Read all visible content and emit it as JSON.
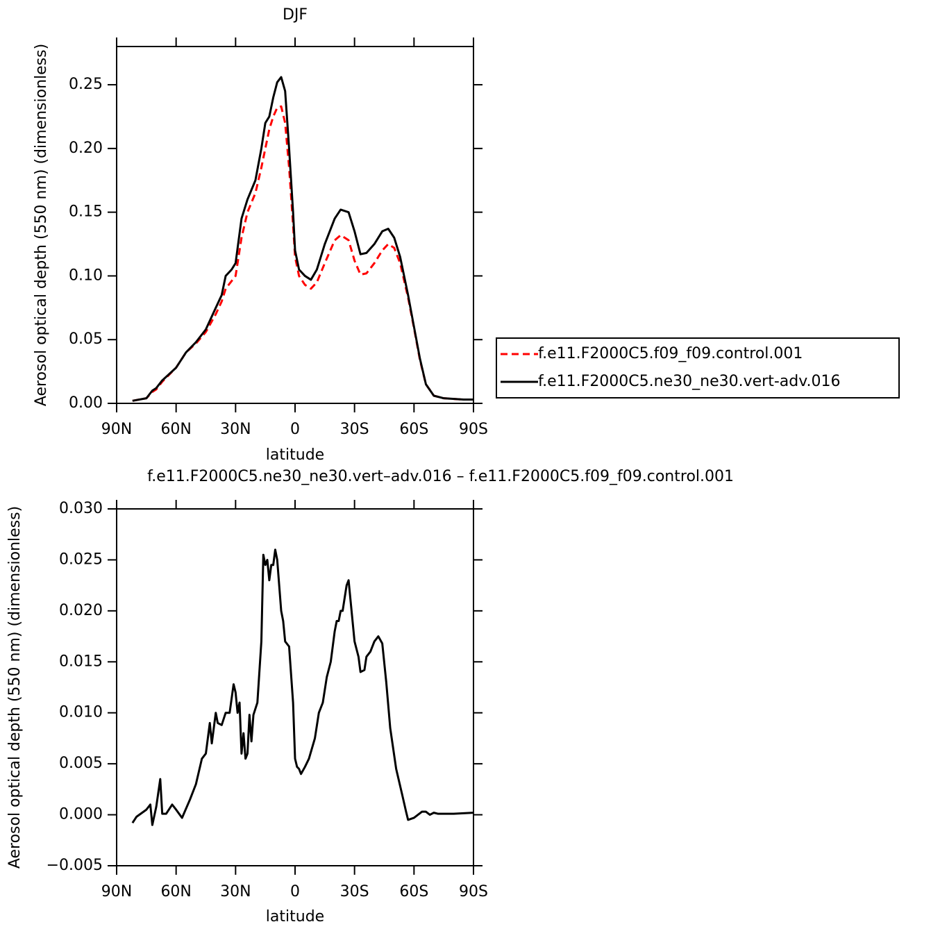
{
  "chart_data": [
    {
      "type": "line",
      "title": "DJF",
      "xlabel": "latitude",
      "ylabel": "Aerosol optical depth (550 nm) (dimensionless)",
      "x": [
        82,
        75,
        72,
        70,
        67,
        60,
        55,
        50,
        45,
        40,
        37,
        35,
        32,
        30,
        27,
        24,
        20,
        17,
        15,
        13,
        11,
        9,
        7,
        5,
        3,
        1,
        0,
        -2,
        -5,
        -8,
        -11,
        -15,
        -20,
        -23,
        -27,
        -30,
        -33,
        -36,
        -40,
        -44,
        -47,
        -50,
        -53,
        -57,
        -60,
        -63,
        -66,
        -70,
        -75,
        -85,
        -90
      ],
      "series": [
        {
          "name": "f.e11.F2000C5.f09_f09.control.001",
          "color": "#ff0000",
          "dashed": true,
          "values": [
            0.002,
            0.004,
            0.009,
            0.011,
            0.017,
            0.028,
            0.04,
            0.047,
            0.056,
            0.07,
            0.08,
            0.09,
            0.096,
            0.1,
            0.13,
            0.15,
            0.165,
            0.185,
            0.2,
            0.215,
            0.225,
            0.232,
            0.233,
            0.22,
            0.185,
            0.14,
            0.115,
            0.1,
            0.093,
            0.09,
            0.095,
            0.11,
            0.128,
            0.132,
            0.128,
            0.112,
            0.101,
            0.102,
            0.11,
            0.12,
            0.125,
            0.122,
            0.11,
            0.083,
            0.059,
            0.034,
            0.015,
            0.006,
            0.004,
            0.003,
            0.003
          ]
        },
        {
          "name": "f.e11.F2000C5.ne30_ne30.vert-adv.016",
          "color": "#000000",
          "dashed": false,
          "values": [
            0.002,
            0.004,
            0.01,
            0.012,
            0.018,
            0.028,
            0.04,
            0.048,
            0.058,
            0.075,
            0.085,
            0.1,
            0.105,
            0.11,
            0.145,
            0.16,
            0.175,
            0.2,
            0.22,
            0.225,
            0.24,
            0.252,
            0.256,
            0.245,
            0.2,
            0.15,
            0.12,
            0.105,
            0.1,
            0.097,
            0.105,
            0.125,
            0.145,
            0.152,
            0.15,
            0.135,
            0.117,
            0.118,
            0.125,
            0.135,
            0.137,
            0.13,
            0.115,
            0.085,
            0.06,
            0.035,
            0.015,
            0.006,
            0.004,
            0.003,
            0.003
          ]
        }
      ],
      "xlim": [
        90,
        -90
      ],
      "xticks": [
        {
          "value": 90,
          "label": "90N"
        },
        {
          "value": 60,
          "label": "60N"
        },
        {
          "value": 30,
          "label": "30N"
        },
        0,
        {
          "value": -30,
          "label": "30S"
        },
        {
          "value": -60,
          "label": "60S"
        },
        {
          "value": -90,
          "label": "90S"
        }
      ],
      "ylim": [
        0,
        0.28
      ],
      "yticks": [
        {
          "value": 0,
          "label": "0.00"
        },
        0.05,
        {
          "value": 0.1,
          "label": "0.10"
        },
        0.15,
        {
          "value": 0.2,
          "label": "0.20"
        },
        0.25
      ],
      "legend": "outside-right"
    },
    {
      "type": "line",
      "title": "f.e11.F2000C5.ne30_ne30.vert–adv.016 – f.e11.F2000C5.f09_f09.control.001",
      "xlabel": "latitude",
      "ylabel": "Aerosol optical depth (550 nm) (dimensionless)",
      "x": [
        82,
        80,
        75,
        73,
        72,
        70,
        68,
        67,
        65,
        62,
        60,
        57,
        53,
        50,
        47,
        45,
        43,
        42,
        40,
        39,
        37,
        35,
        33,
        31,
        30,
        29,
        28,
        27,
        26,
        25,
        24,
        23,
        22,
        21,
        19,
        17,
        16,
        15,
        14,
        13,
        12,
        11,
        10,
        9,
        7,
        6,
        5,
        3,
        1,
        0,
        -1,
        -2,
        -3,
        -5,
        -7,
        -10,
        -12,
        -14,
        -16,
        -18,
        -20,
        -21,
        -22,
        -23,
        -24,
        -26,
        -27,
        -29,
        -30,
        -32,
        -33,
        -35,
        -36,
        -38,
        -40,
        -42,
        -44,
        -46,
        -48,
        -51,
        -54,
        -56,
        -57,
        -60,
        -64,
        -66,
        -68,
        -70,
        -72,
        -80,
        -90
      ],
      "series": [
        {
          "color": "#000000",
          "dashed": false,
          "values": [
            -0.0008,
            -0.0002,
            0.0005,
            0.001,
            -0.001,
            0.0008,
            0.0035,
            0.0001,
            0.0001,
            0.001,
            0.0005,
            -0.0003,
            0.0015,
            0.003,
            0.0055,
            0.006,
            0.009,
            0.007,
            0.01,
            0.009,
            0.0088,
            0.01,
            0.01,
            0.0128,
            0.012,
            0.01,
            0.011,
            0.006,
            0.008,
            0.0055,
            0.006,
            0.0098,
            0.0072,
            0.0098,
            0.011,
            0.017,
            0.0255,
            0.0245,
            0.025,
            0.023,
            0.0245,
            0.0245,
            0.026,
            0.025,
            0.02,
            0.019,
            0.017,
            0.0165,
            0.011,
            0.0055,
            0.0047,
            0.0045,
            0.004,
            0.0047,
            0.0055,
            0.0075,
            0.01,
            0.011,
            0.0135,
            0.015,
            0.018,
            0.019,
            0.019,
            0.02,
            0.02,
            0.0225,
            0.023,
            0.019,
            0.017,
            0.0155,
            0.014,
            0.0142,
            0.0155,
            0.016,
            0.017,
            0.0175,
            0.0168,
            0.013,
            0.0085,
            0.0045,
            0.002,
            0.0003,
            -0.0005,
            -0.0003,
            0.0003,
            0.0003,
            0,
            0.0002,
            0.0001,
            0.0001,
            0.0002
          ]
        }
      ],
      "xlim": [
        90,
        -90
      ],
      "xticks": [
        {
          "value": 90,
          "label": "90N"
        },
        {
          "value": 60,
          "label": "60N"
        },
        {
          "value": 30,
          "label": "30N"
        },
        0,
        {
          "value": -30,
          "label": "30S"
        },
        {
          "value": -60,
          "label": "60S"
        },
        {
          "value": -90,
          "label": "90S"
        }
      ],
      "ylim": [
        -0.005,
        0.03
      ],
      "yticks": [
        {
          "value": -0.005,
          "label": "−0.005"
        },
        {
          "value": 0,
          "label": "0.000"
        },
        0.005,
        {
          "value": 0.01,
          "label": "0.010"
        },
        0.015,
        {
          "value": 0.02,
          "label": "0.020"
        },
        0.025,
        {
          "value": 0.03,
          "label": "0.030"
        }
      ]
    }
  ]
}
